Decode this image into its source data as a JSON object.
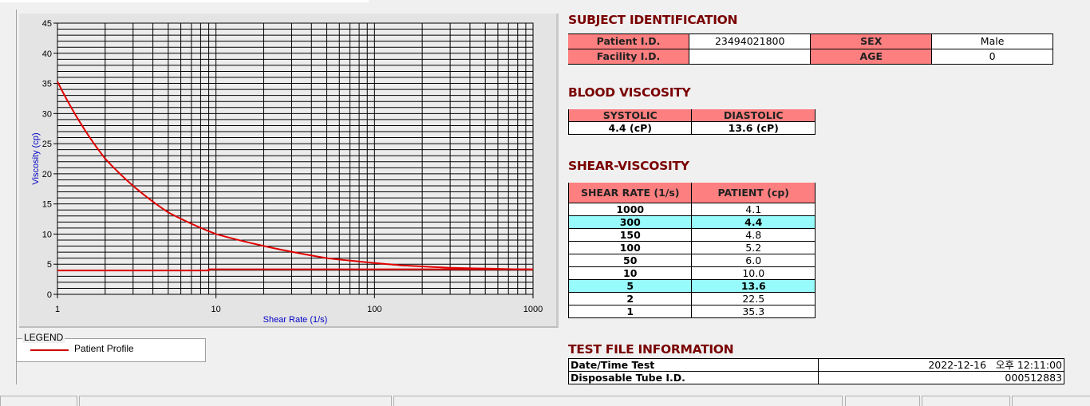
{
  "chart_data": {
    "type": "line",
    "xlabel": "Shear Rate (1/s)",
    "ylabel": "Viscosity (cp)",
    "xscale": "log",
    "xlim": [
      1,
      1000
    ],
    "ylim": [
      0,
      45
    ],
    "xticks": [
      "1",
      "10",
      "100",
      "1000"
    ],
    "yticks": [
      "0",
      "5",
      "10",
      "15",
      "20",
      "25",
      "30",
      "35",
      "40",
      "45"
    ],
    "grid": true,
    "legend_position": "below",
    "series": [
      {
        "name": "Patient Profile",
        "color": "#e00000",
        "x": [
          1,
          2,
          5,
          10,
          50,
          100,
          150,
          300,
          1000
        ],
        "y": [
          35.3,
          22.5,
          13.6,
          10.0,
          6.0,
          5.2,
          4.8,
          4.4,
          4.1
        ]
      },
      {
        "color": "#e00000",
        "x": [
          1,
          9,
          9,
          1000
        ],
        "y": [
          3.95,
          3.95,
          4.15,
          4.15
        ]
      }
    ]
  },
  "legend": {
    "title": "LEGEND",
    "items": [
      {
        "label": "Patient Profile",
        "color": "#d00000"
      }
    ]
  },
  "subject": {
    "title": "SUBJECT IDENTIFICATION",
    "patient_id_label": "Patient I.D.",
    "patient_id": "23494021800",
    "sex_label": "SEX",
    "sex": "Male",
    "facility_id_label": "Facility I.D.",
    "facility_id": "",
    "age_label": "AGE",
    "age": "0"
  },
  "blood": {
    "title": "BLOOD VISCOSITY",
    "systolic_label": "SYSTOLIC",
    "diastolic_label": "DIASTOLIC",
    "systolic": "4.4 (cP)",
    "diastolic": "13.6 (cP)"
  },
  "shear": {
    "title": "SHEAR-VISCOSITY",
    "col1": "SHEAR RATE (1/s)",
    "col2": "PATIENT (cp)",
    "rows": [
      {
        "rate": "1000",
        "value": "4.1",
        "highlight": false
      },
      {
        "rate": "300",
        "value": "4.4",
        "highlight": true
      },
      {
        "rate": "150",
        "value": "4.8",
        "highlight": false
      },
      {
        "rate": "100",
        "value": "5.2",
        "highlight": false
      },
      {
        "rate": "50",
        "value": "6.0",
        "highlight": false
      },
      {
        "rate": "10",
        "value": "10.0",
        "highlight": false
      },
      {
        "rate": "5",
        "value": "13.6",
        "highlight": true
      },
      {
        "rate": "2",
        "value": "22.5",
        "highlight": false
      },
      {
        "rate": "1",
        "value": "35.3",
        "highlight": false
      }
    ]
  },
  "testfile": {
    "title": "TEST FILE INFORMATION",
    "datetime_label": "Date/Time Test",
    "datetime": "2022-12-16   오후 12:11:00",
    "tube_label": "Disposable Tube I.D.",
    "tube": "000512883"
  }
}
